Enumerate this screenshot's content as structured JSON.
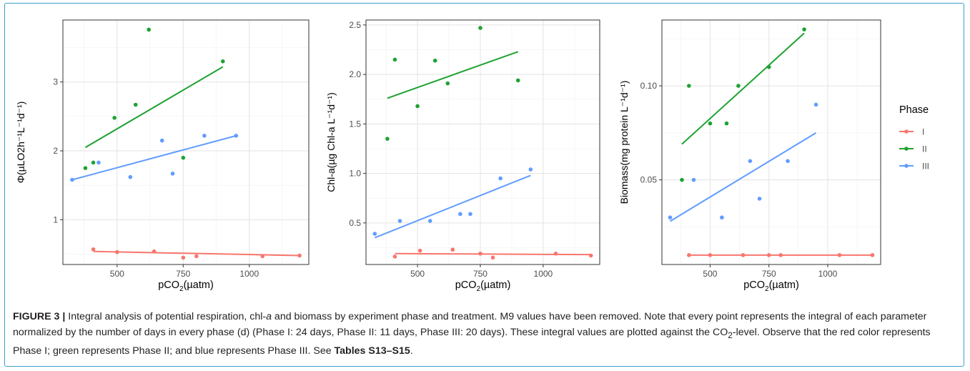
{
  "caption": {
    "label": "FIGURE 3 |",
    "sentence1": " Integral analysis of potential respiration, chl-",
    "sentence1_ital": "a",
    "sentence1_end": " and biomass by experiment phase and treatment. M9 values have been removed. Note that every point represents the integral of each parameter normalized by the number of days in every phase (d) (Phase I: 24 days, Phase II: 11 days, Phase III: 20 days). These integral values are plotted against the CO",
    "sub2": "2",
    "rest": "-level. Observe that the red color represents Phase I; green represents Phase II; and blue represents Phase III. See ",
    "tables_ref": "Tables S13–S15",
    "end": "."
  },
  "legend": {
    "title": "Phase",
    "entries": [
      {
        "label": "I",
        "color": "#f8766d"
      },
      {
        "label": "II",
        "color": "#1ea232"
      },
      {
        "label": "III",
        "color": "#619cff"
      }
    ]
  },
  "chart_data": [
    {
      "type": "scatter",
      "xlabel": "pCO2(µatm)",
      "ylabel": "Φ(µLO2h⁻¹L⁻¹d⁻¹)",
      "xlim": [
        295,
        1225
      ],
      "ylim": [
        0.35,
        3.9
      ],
      "xticks": [
        500,
        750,
        1000
      ],
      "yticks": [
        1,
        2,
        3
      ],
      "series": [
        {
          "name": "I",
          "color": "#f8766d",
          "points": [
            [
              410,
              0.57
            ],
            [
              500,
              0.53
            ],
            [
              640,
              0.54
            ],
            [
              750,
              0.45
            ],
            [
              800,
              0.47
            ],
            [
              1050,
              0.47
            ],
            [
              1190,
              0.48
            ]
          ],
          "fit": [
            [
              410,
              0.54
            ],
            [
              1190,
              0.48
            ]
          ]
        },
        {
          "name": "II",
          "color": "#1ea232",
          "points": [
            [
              380,
              1.75
            ],
            [
              410,
              1.83
            ],
            [
              490,
              2.48
            ],
            [
              570,
              2.67
            ],
            [
              620,
              3.76
            ],
            [
              750,
              1.9
            ],
            [
              900,
              3.3
            ]
          ],
          "fit": [
            [
              380,
              2.05
            ],
            [
              900,
              3.22
            ]
          ]
        },
        {
          "name": "III",
          "color": "#619cff",
          "points": [
            [
              330,
              1.58
            ],
            [
              430,
              1.83
            ],
            [
              550,
              1.62
            ],
            [
              670,
              2.15
            ],
            [
              710,
              1.67
            ],
            [
              830,
              2.22
            ],
            [
              950,
              2.22
            ]
          ],
          "fit": [
            [
              330,
              1.58
            ],
            [
              950,
              2.22
            ]
          ]
        }
      ]
    },
    {
      "type": "scatter",
      "xlabel": "pCO2(µatm)",
      "ylabel": "Chl-a(µg Chl-a L⁻¹d⁻¹)",
      "xlim": [
        295,
        1225
      ],
      "ylim": [
        0.08,
        2.55
      ],
      "xticks": [
        500,
        750,
        1000
      ],
      "yticks": [
        0.5,
        1.0,
        1.5,
        2.0,
        2.5
      ],
      "series": [
        {
          "name": "I",
          "color": "#f8766d",
          "points": [
            [
              410,
              0.16
            ],
            [
              510,
              0.22
            ],
            [
              640,
              0.23
            ],
            [
              750,
              0.19
            ],
            [
              800,
              0.15
            ],
            [
              1050,
              0.19
            ],
            [
              1190,
              0.17
            ]
          ],
          "fit": [
            [
              410,
              0.19
            ],
            [
              1190,
              0.18
            ]
          ]
        },
        {
          "name": "II",
          "color": "#1ea232",
          "points": [
            [
              380,
              1.35
            ],
            [
              410,
              2.15
            ],
            [
              500,
              1.68
            ],
            [
              570,
              2.14
            ],
            [
              620,
              1.91
            ],
            [
              750,
              2.47
            ],
            [
              900,
              1.94
            ]
          ],
          "fit": [
            [
              380,
              1.76
            ],
            [
              900,
              2.23
            ]
          ]
        },
        {
          "name": "III",
          "color": "#619cff",
          "points": [
            [
              330,
              0.39
            ],
            [
              430,
              0.52
            ],
            [
              550,
              0.52
            ],
            [
              670,
              0.59
            ],
            [
              710,
              0.59
            ],
            [
              830,
              0.95
            ],
            [
              950,
              1.04
            ]
          ],
          "fit": [
            [
              330,
              0.35
            ],
            [
              950,
              0.98
            ]
          ]
        }
      ]
    },
    {
      "type": "scatter",
      "xlabel": "pCO2(µatm)",
      "ylabel": "Biomass(mg protein L⁻¹d⁻¹)",
      "xlim": [
        295,
        1225
      ],
      "ylim": [
        0.005,
        0.135
      ],
      "xticks": [
        500,
        750,
        1000
      ],
      "yticks": [
        0.05,
        0.1
      ],
      "series": [
        {
          "name": "I",
          "color": "#f8766d",
          "points": [
            [
              410,
              0.01
            ],
            [
              500,
              0.01
            ],
            [
              640,
              0.01
            ],
            [
              750,
              0.01
            ],
            [
              800,
              0.01
            ],
            [
              1050,
              0.01
            ],
            [
              1190,
              0.01
            ]
          ],
          "fit": [
            [
              410,
              0.01
            ],
            [
              1190,
              0.01
            ]
          ]
        },
        {
          "name": "II",
          "color": "#1ea232",
          "points": [
            [
              380,
              0.05
            ],
            [
              410,
              0.1
            ],
            [
              500,
              0.08
            ],
            [
              570,
              0.08
            ],
            [
              620,
              0.1
            ],
            [
              750,
              0.11
            ],
            [
              900,
              0.13
            ]
          ],
          "fit": [
            [
              380,
              0.069
            ],
            [
              900,
              0.128
            ]
          ]
        },
        {
          "name": "III",
          "color": "#619cff",
          "points": [
            [
              330,
              0.03
            ],
            [
              430,
              0.05
            ],
            [
              550,
              0.03
            ],
            [
              670,
              0.06
            ],
            [
              710,
              0.04
            ],
            [
              830,
              0.06
            ],
            [
              950,
              0.09
            ]
          ],
          "fit": [
            [
              330,
              0.028
            ],
            [
              950,
              0.075
            ]
          ]
        }
      ]
    }
  ]
}
